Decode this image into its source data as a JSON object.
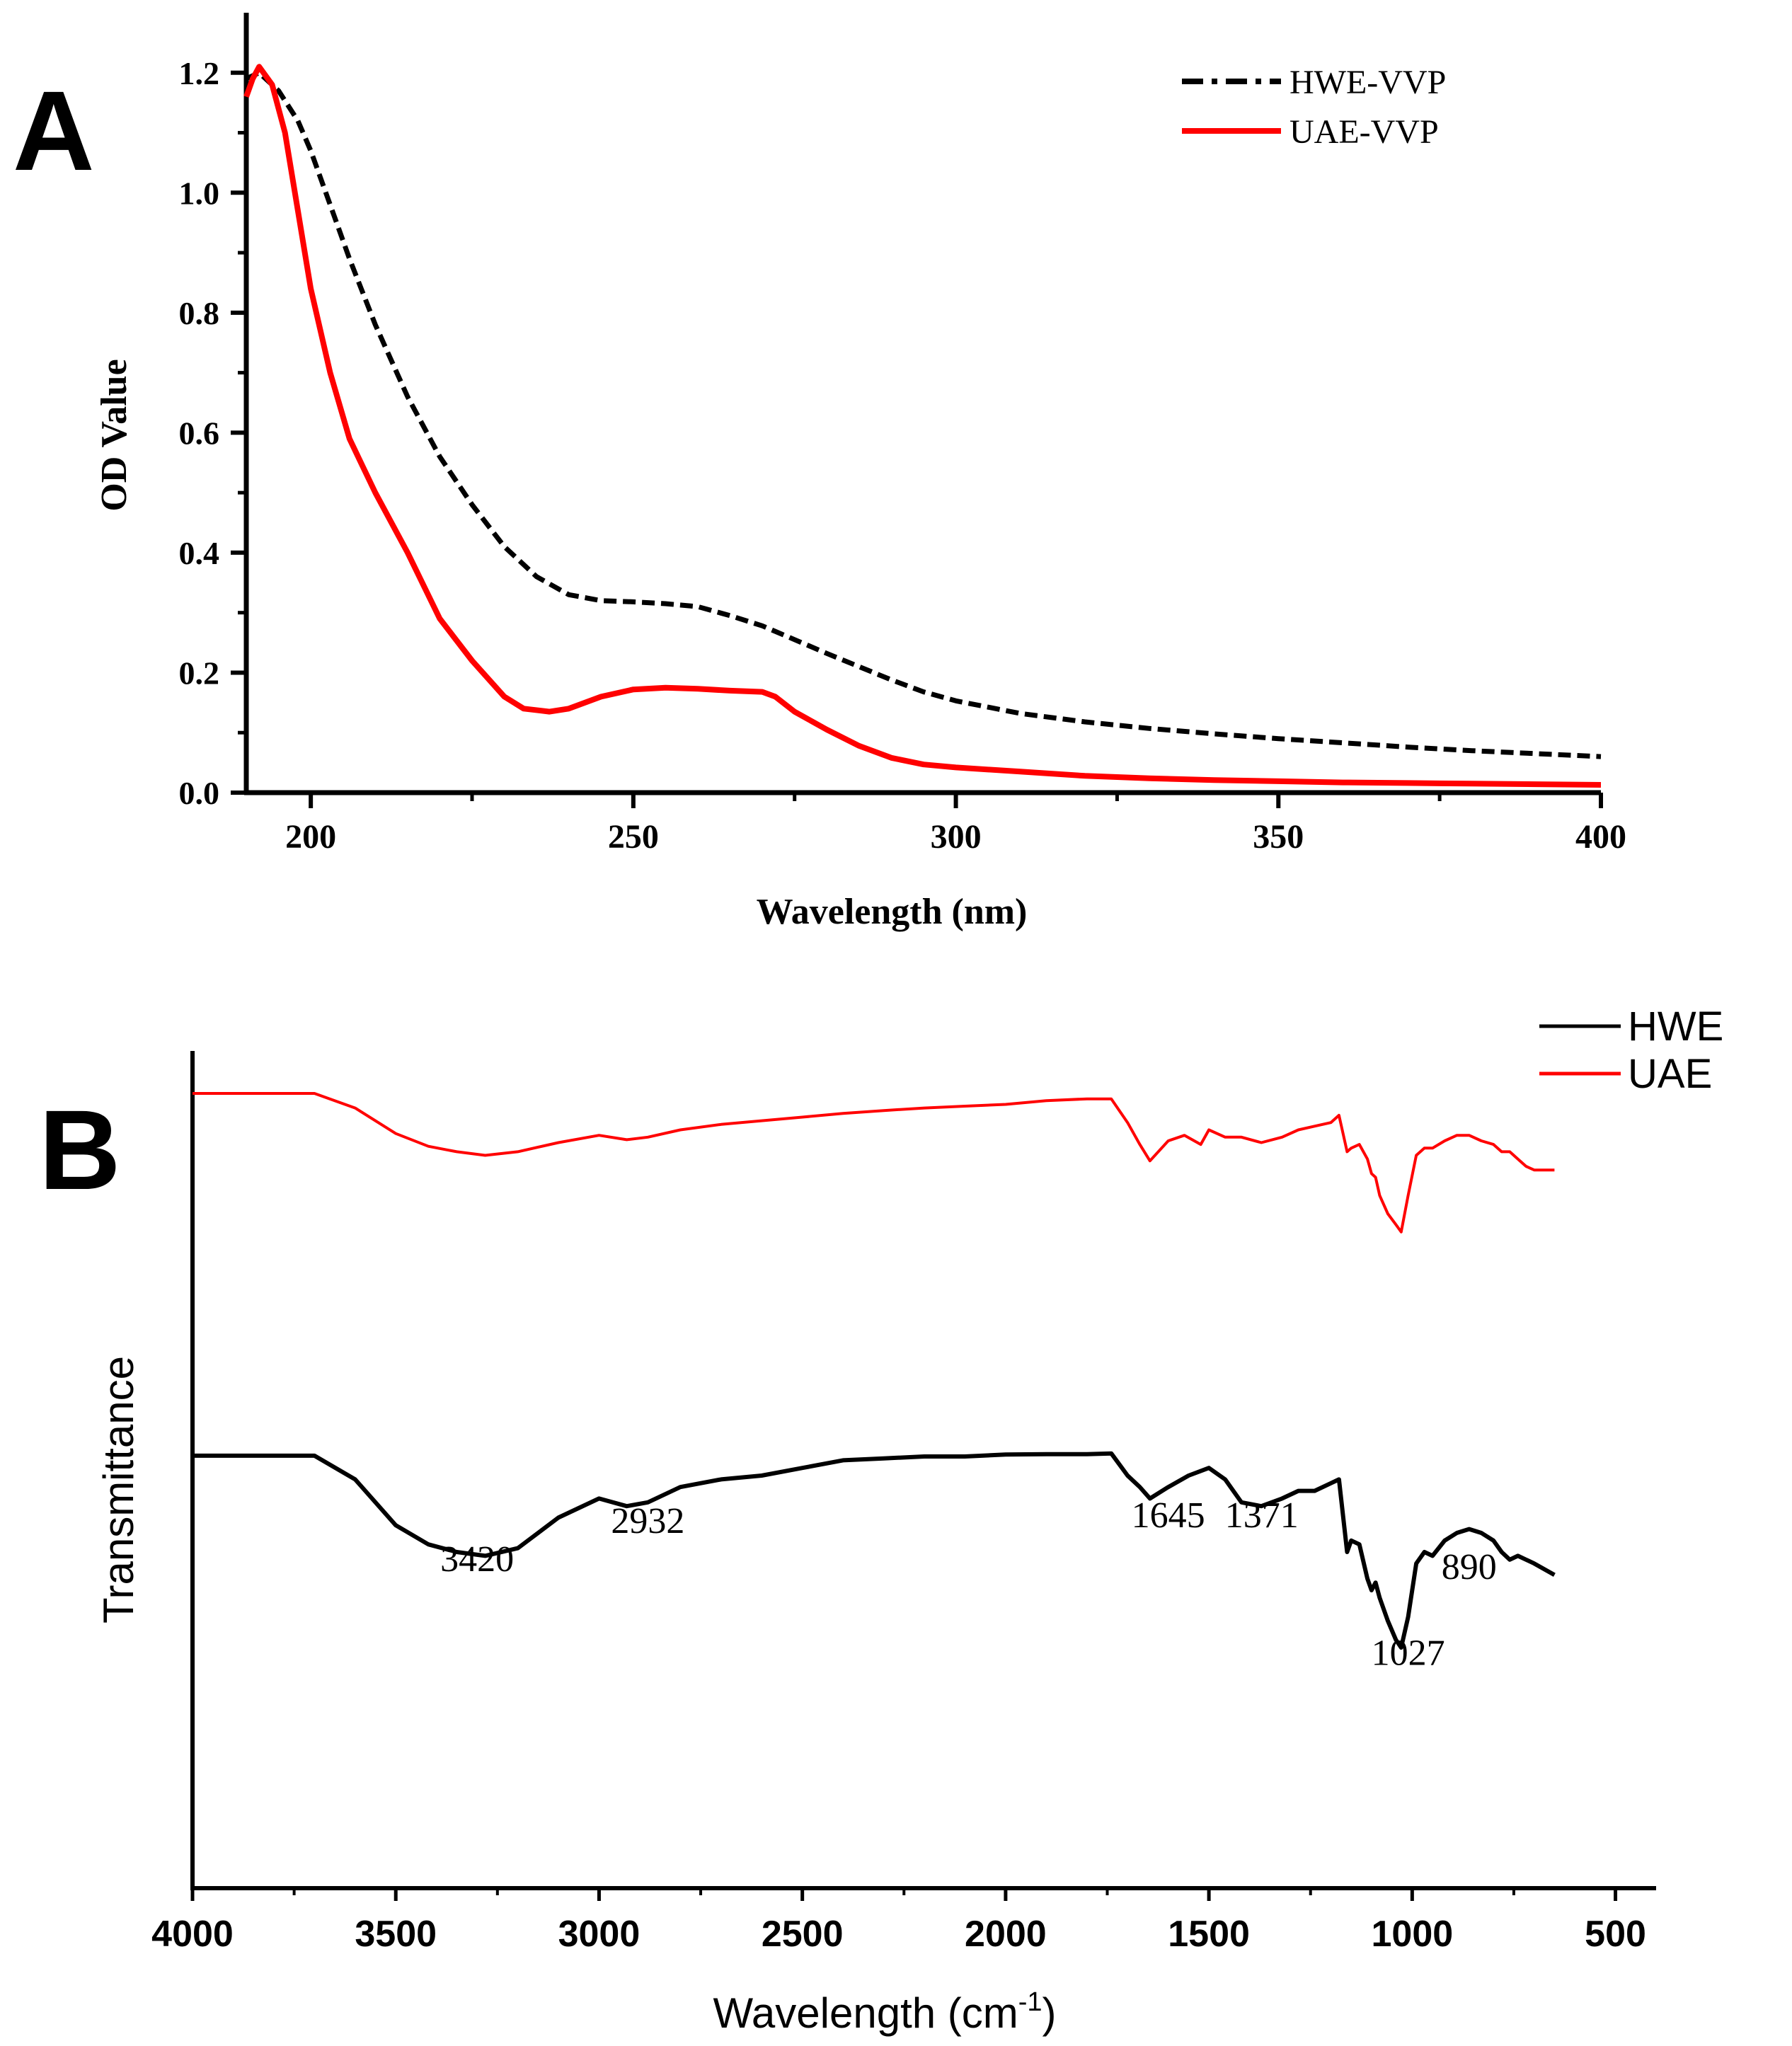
{
  "chart_data": [
    {
      "panel_label": "A",
      "type": "line",
      "xlabel": "Wavelength (nm)",
      "ylabel": "OD Value",
      "xlim": [
        190,
        400
      ],
      "ylim": [
        0,
        1.3
      ],
      "xticks": [
        200,
        250,
        300,
        350,
        400
      ],
      "xtick_labels": [
        "200",
        "250",
        "300",
        "350",
        "400"
      ],
      "yticks": [
        0.0,
        0.2,
        0.4,
        0.6,
        0.8,
        1.0,
        1.2
      ],
      "ytick_labels": [
        "0.0",
        "0.2",
        "0.4",
        "0.6",
        "0.8",
        "1.0",
        "1.2"
      ],
      "grid": false,
      "legend": "top-right",
      "series": [
        {
          "name": "HWE-VVP",
          "color": "#000000",
          "style": "dash-dot",
          "x": [
            190,
            192,
            195,
            198,
            200,
            203,
            206,
            210,
            215,
            220,
            225,
            230,
            235,
            240,
            245,
            250,
            255,
            260,
            265,
            270,
            275,
            280,
            285,
            290,
            295,
            300,
            310,
            320,
            330,
            340,
            350,
            360,
            370,
            380,
            390,
            400
          ],
          "y": [
            1.19,
            1.2,
            1.17,
            1.12,
            1.07,
            0.98,
            0.89,
            0.78,
            0.66,
            0.56,
            0.48,
            0.41,
            0.36,
            0.33,
            0.32,
            0.318,
            0.315,
            0.31,
            0.295,
            0.278,
            0.255,
            0.232,
            0.21,
            0.188,
            0.168,
            0.153,
            0.132,
            0.118,
            0.107,
            0.098,
            0.09,
            0.083,
            0.076,
            0.07,
            0.065,
            0.06
          ]
        },
        {
          "name": "UAE-VVP",
          "color": "#ff0000",
          "style": "solid",
          "x": [
            190,
            191,
            192,
            194,
            196,
            198,
            200,
            203,
            206,
            210,
            215,
            220,
            225,
            230,
            233,
            237,
            240,
            245,
            250,
            255,
            260,
            265,
            270,
            272,
            275,
            280,
            285,
            290,
            295,
            300,
            310,
            320,
            330,
            340,
            350,
            360,
            370,
            380,
            390,
            400
          ],
          "y": [
            1.16,
            1.19,
            1.21,
            1.18,
            1.1,
            0.97,
            0.84,
            0.7,
            0.59,
            0.5,
            0.4,
            0.29,
            0.22,
            0.16,
            0.14,
            0.135,
            0.14,
            0.16,
            0.172,
            0.175,
            0.173,
            0.17,
            0.168,
            0.16,
            0.135,
            0.105,
            0.078,
            0.058,
            0.047,
            0.042,
            0.035,
            0.028,
            0.024,
            0.021,
            0.019,
            0.017,
            0.016,
            0.015,
            0.014,
            0.013
          ]
        }
      ]
    },
    {
      "panel_label": "B",
      "type": "line",
      "xlabel": "Wavelength (cm",
      "xlabel_superscript": "-1",
      "xlabel_suffix": ")",
      "ylabel": "Transmittance",
      "xlim": [
        4000,
        400
      ],
      "xticks": [
        4000,
        3500,
        3000,
        2500,
        2000,
        1500,
        1000,
        500
      ],
      "xtick_labels": [
        "4000",
        "3500",
        "3000",
        "2500",
        "2000",
        "1500",
        "1000",
        "500"
      ],
      "ylim": [
        0,
        1
      ],
      "grid": false,
      "legend": "top-right",
      "series": [
        {
          "name": "HWE",
          "color": "#000000",
          "style": "solid",
          "x": [
            4000,
            3700,
            3600,
            3500,
            3420,
            3350,
            3280,
            3200,
            3100,
            3000,
            2932,
            2880,
            2800,
            2700,
            2600,
            2500,
            2400,
            2300,
            2200,
            2100,
            2000,
            1900,
            1800,
            1740,
            1700,
            1670,
            1645,
            1600,
            1550,
            1500,
            1460,
            1420,
            1371,
            1320,
            1280,
            1240,
            1200,
            1180,
            1160,
            1150,
            1130,
            1110,
            1100,
            1090,
            1080,
            1060,
            1040,
            1027,
            1010,
            990,
            970,
            950,
            920,
            890,
            860,
            830,
            800,
            780,
            760,
            740,
            720,
            700,
            650
          ],
          "y": [
            0.802,
            0.802,
            0.74,
            0.62,
            0.57,
            0.55,
            0.54,
            0.56,
            0.64,
            0.69,
            0.67,
            0.68,
            0.72,
            0.74,
            0.75,
            0.77,
            0.79,
            0.795,
            0.8,
            0.8,
            0.805,
            0.806,
            0.806,
            0.808,
            0.75,
            0.72,
            0.69,
            0.72,
            0.75,
            0.77,
            0.74,
            0.68,
            0.67,
            0.69,
            0.71,
            0.71,
            0.73,
            0.74,
            0.55,
            0.58,
            0.57,
            0.48,
            0.45,
            0.47,
            0.43,
            0.37,
            0.32,
            0.3,
            0.38,
            0.52,
            0.55,
            0.54,
            0.58,
            0.6,
            0.61,
            0.6,
            0.58,
            0.55,
            0.53,
            0.54,
            0.53,
            0.52,
            0.49
          ]
        },
        {
          "name": "UAE",
          "color": "#ff0000",
          "style": "solid",
          "x": [
            4000,
            3700,
            3600,
            3500,
            3420,
            3350,
            3280,
            3200,
            3100,
            3000,
            2932,
            2880,
            2800,
            2700,
            2600,
            2500,
            2400,
            2300,
            2200,
            2100,
            2000,
            1900,
            1800,
            1740,
            1700,
            1670,
            1645,
            1600,
            1560,
            1520,
            1500,
            1460,
            1420,
            1371,
            1320,
            1280,
            1240,
            1200,
            1180,
            1160,
            1150,
            1130,
            1110,
            1100,
            1090,
            1080,
            1060,
            1040,
            1027,
            1010,
            990,
            970,
            950,
            920,
            890,
            860,
            830,
            800,
            780,
            760,
            740,
            720,
            700,
            650
          ],
          "y": [
            1.0,
            1.0,
            0.96,
            0.89,
            0.855,
            0.84,
            0.83,
            0.84,
            0.865,
            0.885,
            0.873,
            0.88,
            0.9,
            0.915,
            0.925,
            0.935,
            0.945,
            0.953,
            0.96,
            0.965,
            0.97,
            0.98,
            0.985,
            0.985,
            0.92,
            0.86,
            0.815,
            0.87,
            0.885,
            0.86,
            0.9,
            0.88,
            0.88,
            0.865,
            0.88,
            0.9,
            0.91,
            0.92,
            0.94,
            0.84,
            0.85,
            0.86,
            0.82,
            0.78,
            0.77,
            0.72,
            0.67,
            0.64,
            0.62,
            0.72,
            0.83,
            0.85,
            0.85,
            0.87,
            0.885,
            0.885,
            0.87,
            0.86,
            0.84,
            0.84,
            0.82,
            0.8,
            0.79,
            0.79
          ]
        }
      ],
      "annotations": [
        {
          "text": "3420",
          "x": 3300,
          "y": 0.5
        },
        {
          "text": "2932",
          "x": 2880,
          "y": 0.6
        },
        {
          "text": "1645",
          "x": 1600,
          "y": 0.615
        },
        {
          "text": "1371",
          "x": 1370,
          "y": 0.615
        },
        {
          "text": "890",
          "x": 860,
          "y": 0.48
        },
        {
          "text": "1027",
          "x": 1010,
          "y": 0.255
        }
      ]
    }
  ]
}
